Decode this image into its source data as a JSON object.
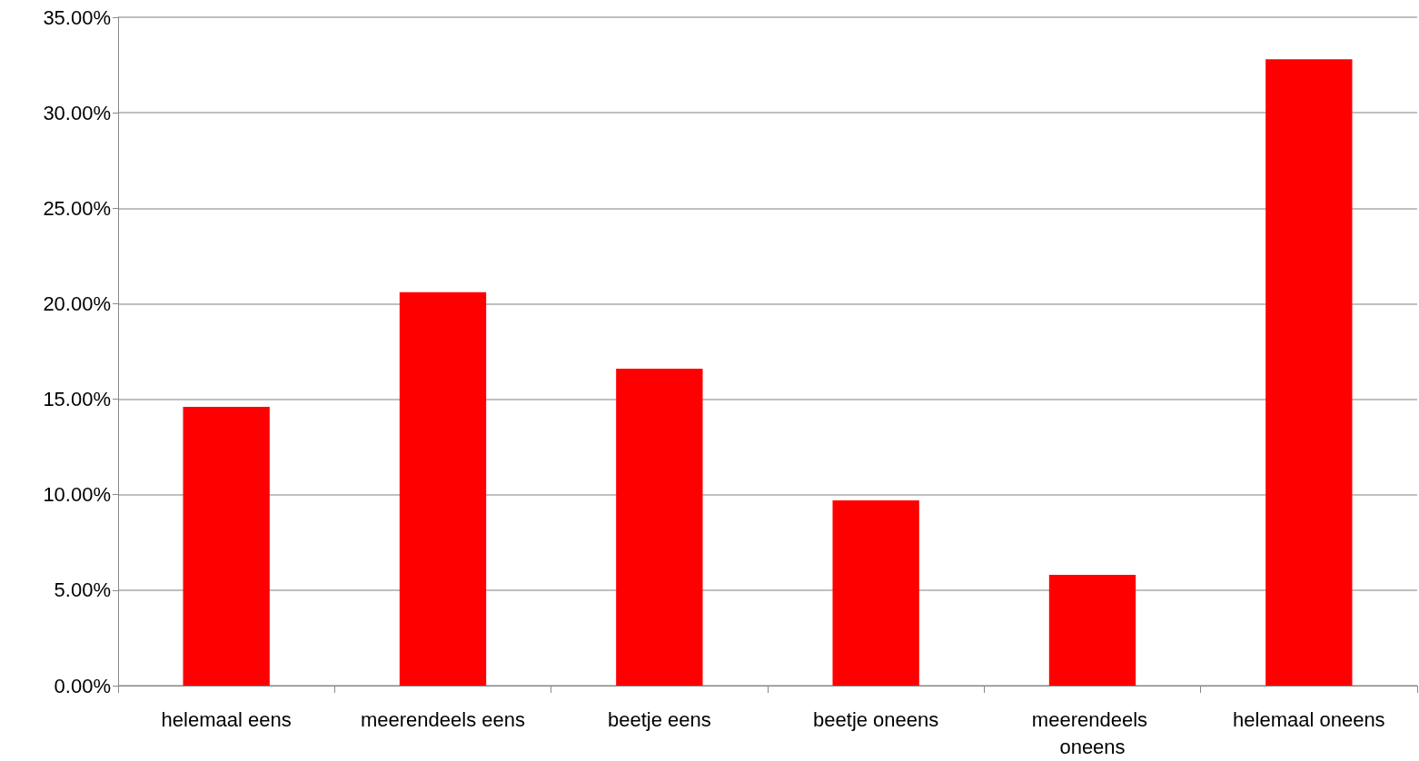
{
  "chart_data": {
    "type": "bar",
    "categories": [
      "helemaal eens",
      "meerendeels eens",
      "beetje eens",
      "beetje oneens",
      "meerendeels oneens",
      "helemaal oneens"
    ],
    "values": [
      14.6,
      20.6,
      16.6,
      9.7,
      5.8,
      32.8
    ],
    "color": "#ff0000",
    "ylim": [
      0,
      35
    ],
    "yticks": [
      {
        "value": 0,
        "label": "0.00%"
      },
      {
        "value": 5,
        "label": "5.00%"
      },
      {
        "value": 10,
        "label": "10.00%"
      },
      {
        "value": 15,
        "label": "15.00%"
      },
      {
        "value": 20,
        "label": "20.00%"
      },
      {
        "value": 25,
        "label": "25.00%"
      },
      {
        "value": 30,
        "label": "30.00%"
      },
      {
        "value": 35,
        "label": "35.00%"
      }
    ],
    "grid": "y"
  }
}
